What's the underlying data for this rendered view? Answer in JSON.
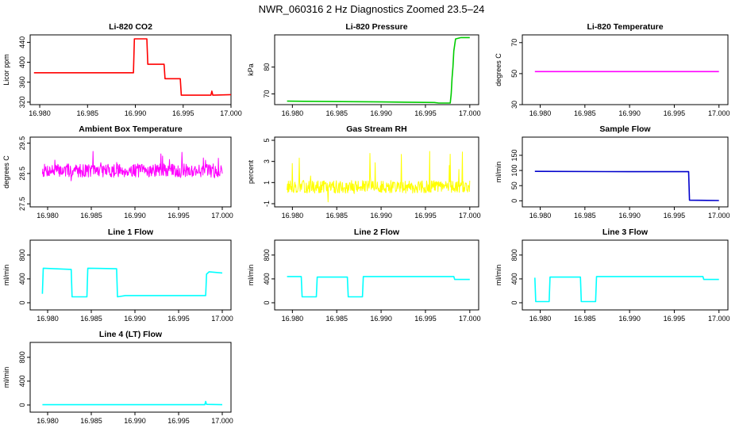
{
  "figure": {
    "title": "NWR_060316  2 Hz Diagnostics Zoomed 23.5–24"
  },
  "chart_data": [
    {
      "type": "line",
      "title": "Li-820 CO2",
      "xlabel": "",
      "ylabel": "Licor ppm",
      "xlim": [
        16.979,
        17.0
      ],
      "ylim": [
        315,
        455
      ],
      "xticks": [
        16.98,
        16.985,
        16.99,
        16.995,
        17.0
      ],
      "xtick_labels": [
        "16.980",
        "16.985",
        "16.990",
        "16.995",
        "17.000"
      ],
      "yticks": [
        320,
        360,
        400,
        440
      ],
      "ytick_labels": [
        "320",
        "360",
        "400",
        "440"
      ],
      "grid": false,
      "legend": "none",
      "series": [
        {
          "color": "#ff0000",
          "kind": "step",
          "points": [
            [
              16.9794,
              379
            ],
            [
              16.9898,
              379
            ],
            [
              16.9899,
              447
            ],
            [
              16.9912,
              447
            ],
            [
              16.9913,
              396
            ],
            [
              16.993,
              396
            ],
            [
              16.9931,
              367
            ],
            [
              16.9947,
              367
            ],
            [
              16.9948,
              334
            ],
            [
              16.9979,
              334
            ],
            [
              16.998,
              342
            ],
            [
              16.9981,
              334
            ],
            [
              17.0,
              335
            ]
          ]
        }
      ]
    },
    {
      "type": "line",
      "title": "Li-820 Pressure",
      "xlabel": "",
      "ylabel": "kPa",
      "xlim": [
        16.978,
        17.001
      ],
      "ylim": [
        66,
        92
      ],
      "xticks": [
        16.98,
        16.985,
        16.99,
        16.995,
        17.0
      ],
      "xtick_labels": [
        "16.980",
        "16.985",
        "16.990",
        "16.995",
        "17.000"
      ],
      "yticks": [
        70,
        80
      ],
      "ytick_labels": [
        "70",
        "80"
      ],
      "grid": false,
      "legend": "none",
      "series": [
        {
          "color": "#00cc00",
          "kind": "line",
          "points": [
            [
              16.9794,
              67.3
            ],
            [
              16.99,
              67.0
            ],
            [
              16.996,
              66.8
            ],
            [
              16.9965,
              66.6
            ],
            [
              16.9978,
              66.6
            ],
            [
              16.9979,
              70
            ],
            [
              16.998,
              76
            ],
            [
              16.9981,
              80
            ],
            [
              16.9982,
              86
            ],
            [
              16.9984,
              90.5
            ],
            [
              16.999,
              91.0
            ],
            [
              17.0,
              91.0
            ]
          ]
        }
      ]
    },
    {
      "type": "line",
      "title": "Li-820 Temperature",
      "xlabel": "",
      "ylabel": "degrees C",
      "xlim": [
        16.978,
        17.001
      ],
      "ylim": [
        30,
        75
      ],
      "xticks": [
        16.98,
        16.985,
        16.99,
        16.995,
        17.0
      ],
      "xtick_labels": [
        "16.980",
        "16.985",
        "16.990",
        "16.995",
        "17.000"
      ],
      "yticks": [
        30,
        50,
        70
      ],
      "ytick_labels": [
        "30",
        "50",
        "70"
      ],
      "grid": false,
      "legend": "none",
      "series": [
        {
          "color": "#ff00ff",
          "kind": "line",
          "points": [
            [
              16.9794,
              51.3
            ],
            [
              17.0,
              51.3
            ]
          ]
        }
      ]
    },
    {
      "type": "line",
      "title": "Ambient Box Temperature",
      "xlabel": "",
      "ylabel": "degrees C",
      "xlim": [
        16.978,
        17.001
      ],
      "ylim": [
        27.4,
        29.7
      ],
      "xticks": [
        16.98,
        16.985,
        16.99,
        16.995,
        17.0
      ],
      "xtick_labels": [
        "16.980",
        "16.985",
        "16.990",
        "16.995",
        "17.000"
      ],
      "yticks": [
        27.5,
        28.5,
        29.5
      ],
      "ytick_labels": [
        "27.5",
        "28.5",
        "29.5"
      ],
      "grid": false,
      "legend": "none",
      "series": [
        {
          "color": "#ff00ff",
          "kind": "noise",
          "x": [
            16.9794,
            17.0
          ],
          "center": 28.6,
          "amp": 0.22,
          "spike": 0.5,
          "n": 420,
          "seed": 7
        }
      ]
    },
    {
      "type": "line",
      "title": "Gas Stream RH",
      "xlabel": "",
      "ylabel": "percent",
      "xlim": [
        16.978,
        17.001
      ],
      "ylim": [
        -1.3,
        5.3
      ],
      "xticks": [
        16.98,
        16.985,
        16.99,
        16.995,
        17.0
      ],
      "xtick_labels": [
        "16.980",
        "16.985",
        "16.990",
        "16.995",
        "17.000"
      ],
      "yticks": [
        -1,
        1,
        3,
        5
      ],
      "ytick_labels": [
        "-1",
        "1",
        "3",
        "5"
      ],
      "grid": false,
      "legend": "none",
      "series": [
        {
          "color": "#ffff00",
          "kind": "noise",
          "x": [
            16.9794,
            17.0
          ],
          "center": 0.6,
          "amp": 0.6,
          "spike": 2.6,
          "n": 420,
          "seed": 13
        }
      ]
    },
    {
      "type": "line",
      "title": "Sample Flow",
      "xlabel": "",
      "ylabel": "ml/min",
      "xlim": [
        16.978,
        17.001
      ],
      "ylim": [
        -20,
        210
      ],
      "xticks": [
        16.98,
        16.985,
        16.99,
        16.995,
        17.0
      ],
      "xtick_labels": [
        "16.980",
        "16.985",
        "16.990",
        "16.995",
        "17.000"
      ],
      "yticks": [
        0,
        50,
        100,
        150
      ],
      "ytick_labels": [
        "0",
        "50",
        "100",
        "150"
      ],
      "grid": false,
      "legend": "none",
      "series": [
        {
          "color": "#0000cc",
          "kind": "line",
          "points": [
            [
              16.9794,
              97
            ],
            [
              16.99,
              96
            ],
            [
              16.9966,
              96
            ],
            [
              16.9967,
              2
            ],
            [
              17.0,
              1
            ]
          ]
        }
      ]
    },
    {
      "type": "line",
      "title": "Line 1 Flow",
      "xlabel": "",
      "ylabel": "ml/min",
      "xlim": [
        16.978,
        17.001
      ],
      "ylim": [
        -120,
        1050
      ],
      "xticks": [
        16.98,
        16.985,
        16.99,
        16.995,
        17.0
      ],
      "xtick_labels": [
        "16.980",
        "16.985",
        "16.990",
        "16.995",
        "17.000"
      ],
      "yticks": [
        0,
        400,
        800
      ],
      "ytick_labels": [
        "0",
        "400",
        "800"
      ],
      "grid": false,
      "legend": "none",
      "series": [
        {
          "color": "#00ffff",
          "kind": "step",
          "points": [
            [
              16.9794,
              150
            ],
            [
              16.9795,
              580
            ],
            [
              16.9827,
              560
            ],
            [
              16.9828,
              100
            ],
            [
              16.9845,
              100
            ],
            [
              16.9846,
              580
            ],
            [
              16.9879,
              570
            ],
            [
              16.988,
              100
            ],
            [
              16.9889,
              120
            ],
            [
              16.9981,
              120
            ],
            [
              16.9982,
              480
            ],
            [
              16.9985,
              520
            ],
            [
              17.0,
              500
            ]
          ]
        }
      ]
    },
    {
      "type": "line",
      "title": "Line 2 Flow",
      "xlabel": "",
      "ylabel": "ml/min",
      "xlim": [
        16.978,
        17.001
      ],
      "ylim": [
        -120,
        1050
      ],
      "xticks": [
        16.98,
        16.985,
        16.99,
        16.995,
        17.0
      ],
      "xtick_labels": [
        "16.980",
        "16.985",
        "16.990",
        "16.995",
        "17.000"
      ],
      "yticks": [
        0,
        400,
        800
      ],
      "ytick_labels": [
        "0",
        "400",
        "800"
      ],
      "grid": false,
      "legend": "none",
      "series": [
        {
          "color": "#00ffff",
          "kind": "step",
          "points": [
            [
              16.9794,
              440
            ],
            [
              16.981,
              440
            ],
            [
              16.9811,
              100
            ],
            [
              16.9827,
              100
            ],
            [
              16.9828,
              430
            ],
            [
              16.9862,
              430
            ],
            [
              16.9863,
              100
            ],
            [
              16.9879,
              100
            ],
            [
              16.988,
              440
            ],
            [
              16.9982,
              440
            ],
            [
              16.9983,
              390
            ],
            [
              17.0,
              390
            ]
          ]
        }
      ]
    },
    {
      "type": "line",
      "title": "Line 3 Flow",
      "xlabel": "",
      "ylabel": "ml/min",
      "xlim": [
        16.978,
        17.001
      ],
      "ylim": [
        -120,
        1050
      ],
      "xticks": [
        16.98,
        16.985,
        16.99,
        16.995,
        17.0
      ],
      "xtick_labels": [
        "16.980",
        "16.985",
        "16.990",
        "16.995",
        "17.000"
      ],
      "yticks": [
        0,
        400,
        800
      ],
      "ytick_labels": [
        "0",
        "400",
        "800"
      ],
      "grid": false,
      "legend": "none",
      "series": [
        {
          "color": "#00ffff",
          "kind": "step",
          "points": [
            [
              16.9794,
              420
            ],
            [
              16.9795,
              20
            ],
            [
              16.981,
              20
            ],
            [
              16.9811,
              430
            ],
            [
              16.9845,
              430
            ],
            [
              16.9846,
              20
            ],
            [
              16.9862,
              20
            ],
            [
              16.9863,
              440
            ],
            [
              16.9982,
              440
            ],
            [
              16.9983,
              390
            ],
            [
              17.0,
              390
            ]
          ]
        }
      ]
    },
    {
      "type": "line",
      "title": "Line 4 (LT) Flow",
      "xlabel": "",
      "ylabel": "ml/min",
      "xlim": [
        16.978,
        17.001
      ],
      "ylim": [
        -120,
        1050
      ],
      "xticks": [
        16.98,
        16.985,
        16.99,
        16.995,
        17.0
      ],
      "xtick_labels": [
        "16.980",
        "16.985",
        "16.990",
        "16.995",
        "17.000"
      ],
      "yticks": [
        0,
        400,
        800
      ],
      "ytick_labels": [
        "0",
        "400",
        "800"
      ],
      "grid": false,
      "legend": "none",
      "series": [
        {
          "color": "#00ffff",
          "kind": "line",
          "points": [
            [
              16.9794,
              5
            ],
            [
              16.998,
              5
            ],
            [
              16.9981,
              60
            ],
            [
              16.9982,
              10
            ],
            [
              17.0,
              5
            ]
          ]
        }
      ]
    }
  ]
}
